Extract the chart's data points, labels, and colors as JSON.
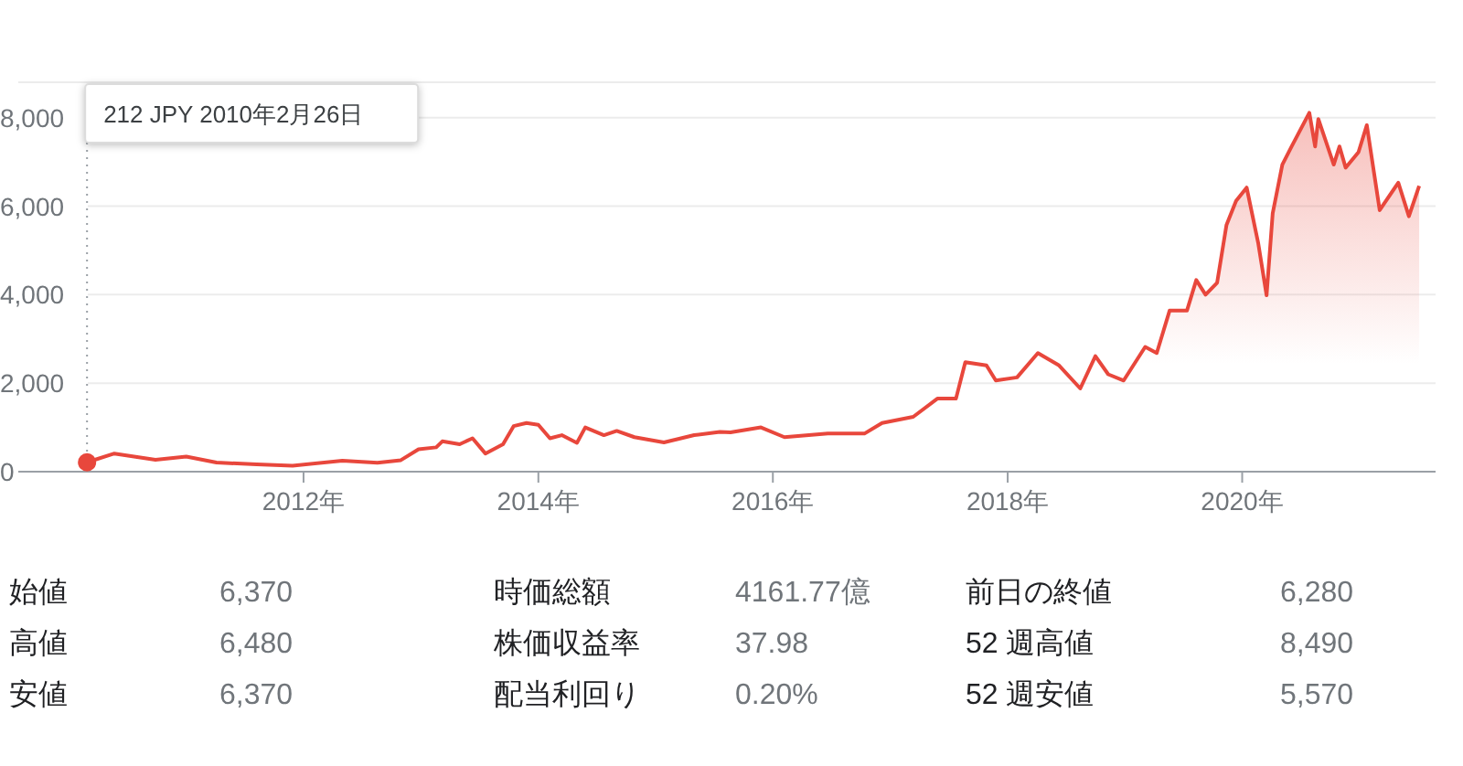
{
  "chart_data": {
    "type": "area",
    "series": [
      {
        "color": "#e8473c",
        "x": [
          "2010-02-26",
          "2010-05-22",
          "2010-09-27",
          "2011-01-01",
          "2011-04-05",
          "2011-08-08",
          "2011-11-28",
          "2012-05-01",
          "2012-08-18",
          "2012-10-30",
          "2012-12-24",
          "2013-02-17",
          "2013-03-08",
          "2013-05-01",
          "2013-06-10",
          "2013-07-20",
          "2013-09-13",
          "2013-10-16",
          "2013-11-25",
          "2014-01-01",
          "2014-02-06",
          "2014-03-15",
          "2014-05-01",
          "2014-05-27",
          "2014-07-24",
          "2014-09-02",
          "2014-10-27",
          "2015-01-27",
          "2015-05-01",
          "2015-07-20",
          "2015-08-22",
          "2015-11-25",
          "2016-02-06",
          "2016-06-20",
          "2016-10-12",
          "2016-12-06",
          "2017-03-13",
          "2017-05-27",
          "2017-07-24",
          "2017-08-22",
          "2017-10-27",
          "2017-11-25",
          "2018-01-30",
          "2018-04-05",
          "2018-06-10",
          "2018-08-15",
          "2018-10-01",
          "2018-11-10",
          "2018-12-28",
          "2019-03-05",
          "2019-04-10",
          "2019-05-20",
          "2019-07-13",
          "2019-08-11",
          "2019-09-09",
          "2019-10-15",
          "2019-11-13",
          "2019-12-13",
          "2020-01-15",
          "2020-02-20",
          "2020-03-17",
          "2020-04-05",
          "2020-05-05",
          "2020-06-03",
          "2020-07-28",
          "2020-08-15",
          "2020-08-25",
          "2020-10-12",
          "2020-10-30",
          "2020-11-18",
          "2020-12-28",
          "2021-01-23",
          "2021-03-04",
          "2021-05-01",
          "2021-06-03",
          "2021-07-05"
        ],
        "values": [
          212,
          410,
          270,
          340,
          205,
          165,
          135,
          250,
          200,
          260,
          505,
          550,
          685,
          620,
          755,
          410,
          620,
          1030,
          1100,
          1060,
          755,
          825,
          650,
          1000,
          825,
          920,
          780,
          660,
          825,
          900,
          890,
          1000,
          780,
          860,
          860,
          1100,
          1240,
          1650,
          1650,
          2475,
          2400,
          2060,
          2130,
          2680,
          2400,
          1880,
          2610,
          2200,
          2060,
          2820,
          2680,
          3640,
          3640,
          4330,
          4000,
          4270,
          5570,
          6120,
          6420,
          5160,
          3985,
          5840,
          6940,
          7350,
          8110,
          7350,
          7970,
          6940,
          7350,
          6870,
          7220,
          7830,
          5910,
          6530,
          5770,
          6460
        ]
      }
    ],
    "xlim": [
      "2009-07-27",
      "2021-08-25"
    ],
    "xticks": [
      {
        "value": "2012-01-01",
        "label": "2012年"
      },
      {
        "value": "2014-01-01",
        "label": "2014年"
      },
      {
        "value": "2016-01-01",
        "label": "2016年"
      },
      {
        "value": "2018-01-01",
        "label": "2018年"
      },
      {
        "value": "2020-01-01",
        "label": "2020年"
      }
    ],
    "yticks": [
      0,
      {
        "value": 2000,
        "label": "2,000"
      },
      {
        "value": 4000,
        "label": "4,000"
      },
      {
        "value": 6000,
        "label": "6,000"
      },
      {
        "value": 8000,
        "label": "8,000"
      }
    ],
    "ylim": [
      0,
      8800
    ],
    "grid": "y",
    "annotations": [
      {
        "text": "212 JPY  2010年2月26日",
        "x": "2010-02-26",
        "y": 212
      },
      "始値",
      "6,370",
      "時価総額",
      "4161.77億",
      "前日の終値",
      "6,280",
      "高値",
      "6,480",
      "株価収益率",
      "37.98",
      "52 週高値",
      "8,490",
      "安値",
      "6,370",
      "配当利回り",
      "0.20%",
      "52 週安値",
      "5,570"
    ]
  }
}
